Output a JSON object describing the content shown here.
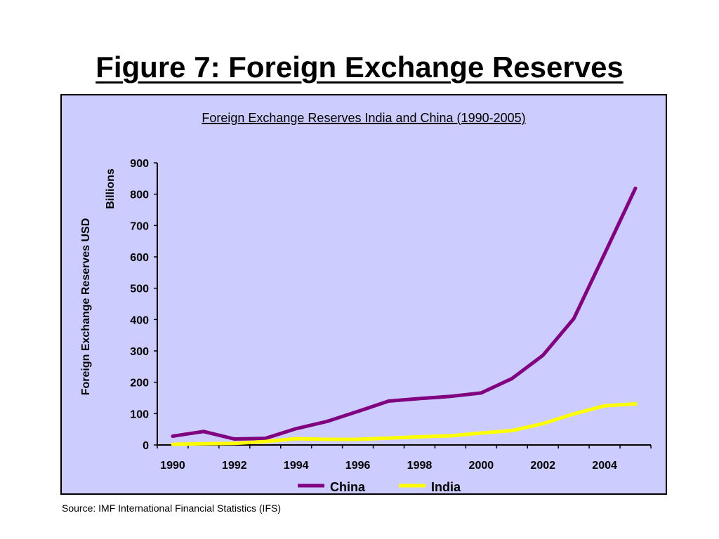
{
  "slide": {
    "title": "Figure 7: Foreign Exchange Reserves",
    "source": "Source: IMF International Financial Statistics (IFS)"
  },
  "chart_data": {
    "type": "line",
    "title": "Foreign Exchange Reserves India and China (1990-2005)",
    "ylabel": "Foreign Exchange Reserves USD",
    "yunit": "Billions",
    "xlabel": "",
    "x": [
      1990,
      1991,
      1992,
      1993,
      1994,
      1995,
      1996,
      1997,
      1998,
      1999,
      2000,
      2001,
      2002,
      2003,
      2004,
      2005
    ],
    "xticks": [
      "1990",
      "1992",
      "1994",
      "1996",
      "1998",
      "2000",
      "2002",
      "2004"
    ],
    "yticks": [
      "0",
      "100",
      "200",
      "300",
      "400",
      "500",
      "600",
      "700",
      "800",
      "900"
    ],
    "ylim": [
      0,
      900
    ],
    "grid": false,
    "legend": "bottom",
    "series": [
      {
        "name": "China",
        "color": "#800080",
        "values": [
          28,
          43,
          19,
          21,
          52,
          75,
          107,
          140,
          148,
          155,
          166,
          212,
          286,
          403,
          610,
          819
        ]
      },
      {
        "name": "India",
        "color": "#ffff00",
        "values": [
          2,
          4,
          5,
          11,
          20,
          18,
          18,
          22,
          26,
          29,
          38,
          46,
          68,
          99,
          125,
          131
        ]
      }
    ]
  }
}
